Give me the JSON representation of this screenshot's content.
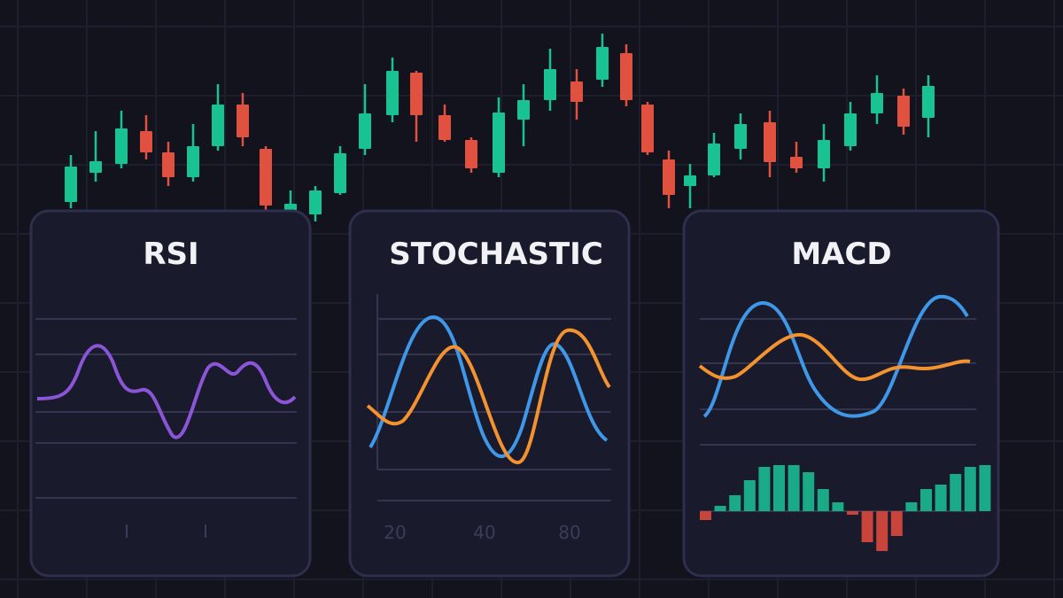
{
  "panels": [
    {
      "title": "RSI"
    },
    {
      "title": "STOCHASTIC",
      "axis_labels": [
        "20",
        "40",
        "80"
      ]
    },
    {
      "title": "MACD"
    }
  ]
}
